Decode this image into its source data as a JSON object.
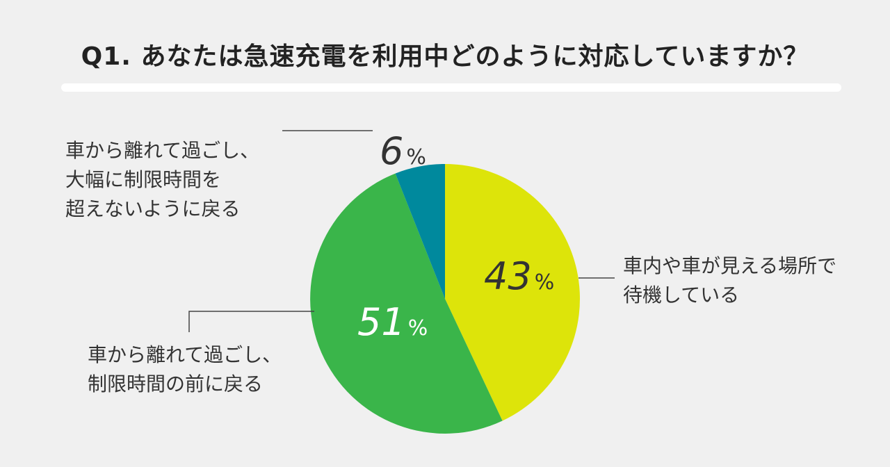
{
  "title": "Q1. あなたは急速充電を利用中どのように対応していますか？",
  "chart_data": {
    "type": "pie",
    "slices": [
      {
        "label_lines": [
          "車内や車が見える場所で",
          "待機している"
        ],
        "value": 43,
        "value_text": "43",
        "unit": "%",
        "color": "#dde40a",
        "value_color": "#333333"
      },
      {
        "label_lines": [
          "車から離れて過ごし、",
          "制限時間の前に戻る"
        ],
        "value": 51,
        "value_text": "51",
        "unit": "%",
        "color": "#3ab54a",
        "value_color": "#ffffff"
      },
      {
        "label_lines": [
          "車から離れて過ごし、",
          "大幅に制限時間を",
          "超えないように戻る"
        ],
        "value": 6,
        "value_text": "6",
        "unit": "%",
        "color": "#00899d",
        "value_color": "#333333"
      }
    ]
  }
}
